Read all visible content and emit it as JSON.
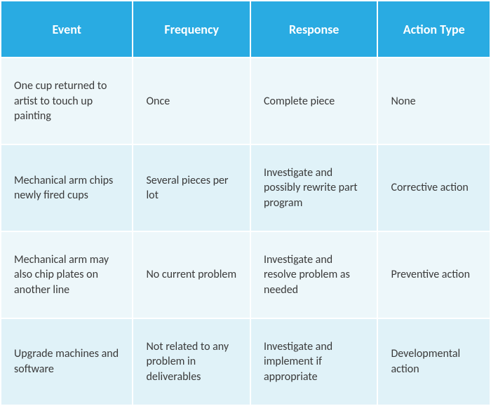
{
  "table": {
    "type": "table",
    "header_bg": "#29abe2",
    "header_fg": "#ffffff",
    "row_bg_odd": "#edf7fa",
    "row_bg_even": "#e0f2f8",
    "body_fg": "#3a3a3a",
    "border_color": "#ffffff",
    "columns": [
      "Event",
      "Frequency",
      "Response",
      "Action Type"
    ],
    "col_widths_pct": [
      27,
      24,
      26,
      23
    ],
    "header_fontsize": 18,
    "body_fontsize": 16,
    "rows": [
      [
        "One cup returned to artist to touch up painting",
        "Once",
        "Complete piece",
        "None"
      ],
      [
        "Mechanical arm chips newly fired cups",
        "Several pieces per lot",
        "Investigate and possibly rewrite part program",
        "Corrective action"
      ],
      [
        "Mechanical arm may also chip plates on another line",
        "No current problem",
        "Investigate and resolve problem as needed",
        "Preventive action"
      ],
      [
        "Upgrade machines and software",
        "Not related to any problem in deliverables",
        "Investigate and implement if appropriate",
        "Developmental action"
      ]
    ]
  }
}
